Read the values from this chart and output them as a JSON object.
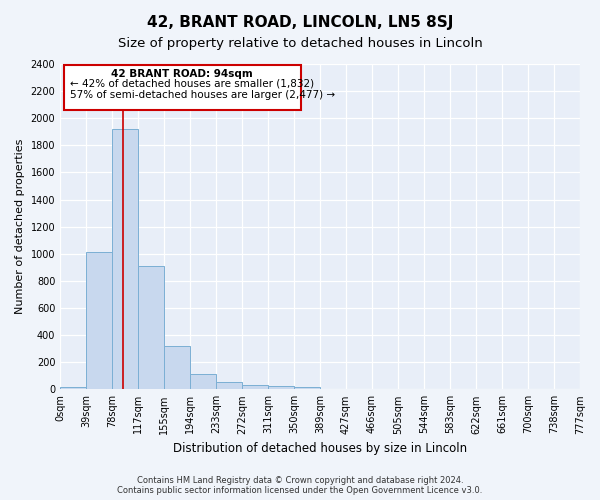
{
  "title": "42, BRANT ROAD, LINCOLN, LN5 8SJ",
  "subtitle": "Size of property relative to detached houses in Lincoln",
  "xlabel": "Distribution of detached houses by size in Lincoln",
  "ylabel": "Number of detached properties",
  "bin_edges": [
    0,
    39,
    78,
    117,
    155,
    194,
    233,
    272,
    311,
    350,
    389,
    427,
    466,
    505,
    544,
    583,
    622,
    661,
    700,
    738,
    777
  ],
  "bar_heights": [
    20,
    1010,
    1920,
    910,
    320,
    115,
    55,
    30,
    25,
    20,
    0,
    0,
    0,
    0,
    0,
    0,
    0,
    0,
    0,
    0
  ],
  "bar_color": "#c8d8ee",
  "bar_edge_color": "#7bafd4",
  "background_color": "#f0f4fa",
  "plot_bg_color": "#e8eef8",
  "grid_color": "#ffffff",
  "property_size": 94,
  "red_line_color": "#cc0000",
  "annotation_line1": "42 BRANT ROAD: 94sqm",
  "annotation_line2": "← 42% of detached houses are smaller (1,832)",
  "annotation_line3": "57% of semi-detached houses are larger (2,477) →",
  "annotation_box_color": "#ffffff",
  "annotation_box_edge": "#cc0000",
  "ylim": [
    0,
    2400
  ],
  "yticks": [
    0,
    200,
    400,
    600,
    800,
    1000,
    1200,
    1400,
    1600,
    1800,
    2000,
    2200,
    2400
  ],
  "footnote": "Contains HM Land Registry data © Crown copyright and database right 2024.\nContains public sector information licensed under the Open Government Licence v3.0.",
  "title_fontsize": 11,
  "subtitle_fontsize": 9.5,
  "tick_fontsize": 7,
  "ylabel_fontsize": 8,
  "xlabel_fontsize": 8.5,
  "annotation_fontsize": 7.5,
  "footnote_fontsize": 6
}
